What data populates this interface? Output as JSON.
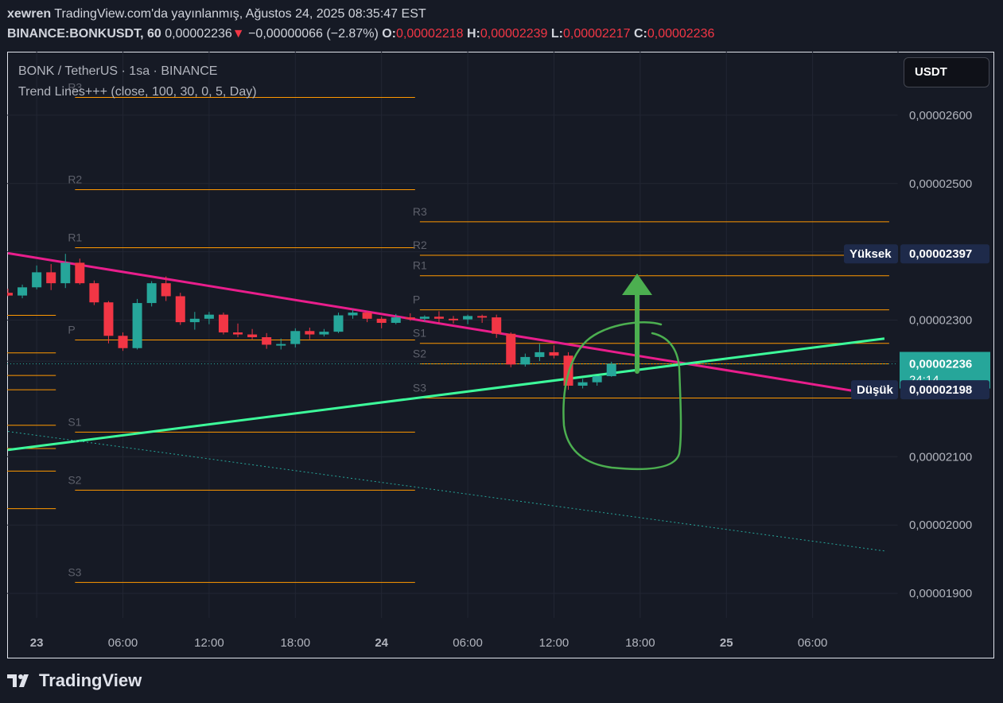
{
  "header": {
    "author": "xewren",
    "published": "TradingView.com'da yayınlanmış, Ağustos 24, 2025 08:35:47 EST",
    "symbol": "BINANCE:BONKUSDT, 60",
    "last": "0,00002236",
    "arrow": "▼",
    "change": "−0,00000066 (−2.87%)",
    "o_label": "O:",
    "o": "0,00002218",
    "h_label": "H:",
    "h": "0,00002239",
    "l_label": "L:",
    "l": "0,00002217",
    "c_label": "C:",
    "c": "0,00002236"
  },
  "legend": {
    "title": "BONK / TetherUS · 1sa · BINANCE",
    "indicator": "Trend Lines+++ (close, 100, 30, 0, 5, Day)"
  },
  "currency_button": "USDT",
  "brand": "TradingView",
  "colors": {
    "background": "#161a25",
    "up": "#26a69a",
    "down": "#f23645",
    "downtrend": "#e91e8c",
    "uptrend": "#3dfc9b",
    "pivot": "#ff9800",
    "annotation": "#4caf50"
  },
  "chart_data": {
    "type": "candlestick",
    "price_axis_ticks": [
      "0,00002600",
      "0,00002500",
      "0,00002300",
      "0,00002100",
      "0,00002000",
      "0,00001900"
    ],
    "price_axis_values": [
      2.6e-05,
      2.5e-05,
      2.3e-05,
      2.1e-05,
      2e-05,
      1.9e-05
    ],
    "time_axis_ticks": [
      "23",
      "06:00",
      "12:00",
      "18:00",
      "24",
      "06:00",
      "12:00",
      "18:00",
      "25",
      "06:00"
    ],
    "time_axis_hours": [
      0,
      6,
      12,
      18,
      24,
      30,
      36,
      42,
      48,
      54
    ],
    "y_range": [
      1.864e-05,
      2.693e-05
    ],
    "x_range_hours": [
      -2,
      60
    ],
    "price_labels": [
      {
        "text": "Yüksek",
        "value": "0,00002397",
        "price": 2.397e-05,
        "style": "tag"
      },
      {
        "text": "24:14",
        "value": "0,00002236",
        "price": 2.236e-05,
        "style": "current"
      },
      {
        "text": "Düşük",
        "value": "0,00002198",
        "price": 2.198e-05,
        "style": "tag"
      }
    ],
    "candles": [
      {
        "t": -2,
        "o": 2.34e-05,
        "h": 2.346e-05,
        "l": 2.335e-05,
        "c": 2.336e-05
      },
      {
        "t": -1,
        "o": 2.336e-05,
        "h": 2.352e-05,
        "l": 2.332e-05,
        "c": 2.348e-05
      },
      {
        "t": 0,
        "o": 2.348e-05,
        "h": 2.38e-05,
        "l": 2.345e-05,
        "c": 2.37e-05
      },
      {
        "t": 1,
        "o": 2.37e-05,
        "h": 2.382e-05,
        "l": 2.344e-05,
        "c": 2.354e-05
      },
      {
        "t": 2,
        "o": 2.354e-05,
        "h": 2.397e-05,
        "l": 2.347e-05,
        "c": 2.384e-05
      },
      {
        "t": 3,
        "o": 2.384e-05,
        "h": 2.39e-05,
        "l": 2.352e-05,
        "c": 2.354e-05
      },
      {
        "t": 4,
        "o": 2.354e-05,
        "h": 2.358e-05,
        "l": 2.322e-05,
        "c": 2.326e-05
      },
      {
        "t": 5,
        "o": 2.326e-05,
        "h": 2.328e-05,
        "l": 2.266e-05,
        "c": 2.277e-05
      },
      {
        "t": 6,
        "o": 2.277e-05,
        "h": 2.282e-05,
        "l": 2.255e-05,
        "c": 2.259e-05
      },
      {
        "t": 7,
        "o": 2.259e-05,
        "h": 2.331e-05,
        "l": 2.257e-05,
        "c": 2.325e-05
      },
      {
        "t": 8,
        "o": 2.325e-05,
        "h": 2.357e-05,
        "l": 2.32e-05,
        "c": 2.354e-05
      },
      {
        "t": 9,
        "o": 2.354e-05,
        "h": 2.364e-05,
        "l": 2.328e-05,
        "c": 2.335e-05
      },
      {
        "t": 10,
        "o": 2.335e-05,
        "h": 2.34e-05,
        "l": 2.293e-05,
        "c": 2.297e-05
      },
      {
        "t": 11,
        "o": 2.297e-05,
        "h": 2.312e-05,
        "l": 2.286e-05,
        "c": 2.302e-05
      },
      {
        "t": 12,
        "o": 2.302e-05,
        "h": 2.312e-05,
        "l": 2.294e-05,
        "c": 2.308e-05
      },
      {
        "t": 13,
        "o": 2.308e-05,
        "h": 2.311e-05,
        "l": 2.279e-05,
        "c": 2.282e-05
      },
      {
        "t": 14,
        "o": 2.282e-05,
        "h": 2.295e-05,
        "l": 2.275e-05,
        "c": 2.279e-05
      },
      {
        "t": 15,
        "o": 2.279e-05,
        "h": 2.287e-05,
        "l": 2.272e-05,
        "c": 2.275e-05
      },
      {
        "t": 16,
        "o": 2.275e-05,
        "h": 2.281e-05,
        "l": 2.258e-05,
        "c": 2.264e-05
      },
      {
        "t": 17,
        "o": 2.264e-05,
        "h": 2.273e-05,
        "l": 2.257e-05,
        "c": 2.265e-05
      },
      {
        "t": 18,
        "o": 2.265e-05,
        "h": 2.288e-05,
        "l": 2.26e-05,
        "c": 2.284e-05
      },
      {
        "t": 19,
        "o": 2.284e-05,
        "h": 2.289e-05,
        "l": 2.272e-05,
        "c": 2.279e-05
      },
      {
        "t": 20,
        "o": 2.279e-05,
        "h": 2.287e-05,
        "l": 2.276e-05,
        "c": 2.283e-05
      },
      {
        "t": 21,
        "o": 2.283e-05,
        "h": 2.311e-05,
        "l": 2.281e-05,
        "c": 2.307e-05
      },
      {
        "t": 22,
        "o": 2.307e-05,
        "h": 2.316e-05,
        "l": 2.302e-05,
        "c": 2.311e-05
      },
      {
        "t": 23,
        "o": 2.311e-05,
        "h": 2.313e-05,
        "l": 2.297e-05,
        "c": 2.302e-05
      },
      {
        "t": 24,
        "o": 2.302e-05,
        "h": 2.305e-05,
        "l": 2.288e-05,
        "c": 2.296e-05
      },
      {
        "t": 25,
        "o": 2.296e-05,
        "h": 2.309e-05,
        "l": 2.294e-05,
        "c": 2.304e-05
      },
      {
        "t": 26,
        "o": 2.304e-05,
        "h": 2.31e-05,
        "l": 2.299e-05,
        "c": 2.302e-05
      },
      {
        "t": 27,
        "o": 2.302e-05,
        "h": 2.307e-05,
        "l": 2.298e-05,
        "c": 2.305e-05
      },
      {
        "t": 28,
        "o": 2.305e-05,
        "h": 2.313e-05,
        "l": 2.296e-05,
        "c": 2.302e-05
      },
      {
        "t": 29,
        "o": 2.302e-05,
        "h": 2.306e-05,
        "l": 2.295e-05,
        "c": 2.301e-05
      },
      {
        "t": 30,
        "o": 2.301e-05,
        "h": 2.308e-05,
        "l": 2.294e-05,
        "c": 2.306e-05
      },
      {
        "t": 31,
        "o": 2.306e-05,
        "h": 2.308e-05,
        "l": 2.296e-05,
        "c": 2.304e-05
      },
      {
        "t": 32,
        "o": 2.304e-05,
        "h": 2.308e-05,
        "l": 2.274e-05,
        "c": 2.28e-05
      },
      {
        "t": 33,
        "o": 2.28e-05,
        "h": 2.282e-05,
        "l": 2.231e-05,
        "c": 2.235e-05
      },
      {
        "t": 34,
        "o": 2.235e-05,
        "h": 2.251e-05,
        "l": 2.232e-05,
        "c": 2.246e-05
      },
      {
        "t": 35,
        "o": 2.246e-05,
        "h": 2.265e-05,
        "l": 2.24e-05,
        "c": 2.253e-05
      },
      {
        "t": 36,
        "o": 2.253e-05,
        "h": 2.263e-05,
        "l": 2.244e-05,
        "c": 2.248e-05
      },
      {
        "t": 37,
        "o": 2.248e-05,
        "h": 2.253e-05,
        "l": 2.198e-05,
        "c": 2.204e-05
      },
      {
        "t": 38,
        "o": 2.204e-05,
        "h": 2.214e-05,
        "l": 2.2e-05,
        "c": 2.209e-05
      },
      {
        "t": 39,
        "o": 2.209e-05,
        "h": 2.218e-05,
        "l": 2.204e-05,
        "c": 2.218e-05
      },
      {
        "t": 40,
        "o": 2.218e-05,
        "h": 2.239e-05,
        "l": 2.217e-05,
        "c": 2.236e-05
      }
    ],
    "pivot_sets": [
      {
        "t_start": -2,
        "t_end": 1,
        "levels": [
          {
            "label": "",
            "price": 2.307e-05
          },
          {
            "label": "",
            "price": 2.252e-05
          },
          {
            "label": "",
            "price": 2.219e-05
          },
          {
            "label": "",
            "price": 2.198e-05
          },
          {
            "label": "",
            "price": 2.146e-05
          },
          {
            "label": "",
            "price": 2.112e-05
          },
          {
            "label": "",
            "price": 2.079e-05
          },
          {
            "label": "",
            "price": 2.024e-05
          }
        ]
      },
      {
        "t_start": 3,
        "t_end": 26,
        "levels": [
          {
            "label": "R3",
            "price": 2.626e-05
          },
          {
            "label": "R2",
            "price": 2.491e-05
          },
          {
            "label": "R1",
            "price": 2.406e-05
          },
          {
            "label": "P",
            "price": 2.271e-05
          },
          {
            "label": "S1",
            "price": 2.136e-05
          },
          {
            "label": "S2",
            "price": 2.051e-05
          },
          {
            "label": "S3",
            "price": 1.916e-05
          }
        ]
      },
      {
        "t_start": 27,
        "t_end": 59,
        "levels": [
          {
            "label": "R3",
            "price": 2.444e-05
          },
          {
            "label": "R2",
            "price": 2.395e-05
          },
          {
            "label": "R1",
            "price": 2.365e-05
          },
          {
            "label": "P",
            "price": 2.315e-05
          },
          {
            "label": "S1",
            "price": 2.266e-05
          },
          {
            "label": "S2",
            "price": 2.236e-05
          },
          {
            "label": "S3",
            "price": 2.186e-05
          }
        ]
      }
    ],
    "trend_lines": [
      {
        "name": "",
        "kind": "downtrend",
        "t1": -2,
        "p1": 2.398e-05,
        "t2": 59,
        "p2": 2.189e-05
      },
      {
        "name": "",
        "kind": "uptrend",
        "t1": -2,
        "p1": 2.11e-05,
        "t2": 59,
        "p2": 2.273e-05
      },
      {
        "name": "",
        "kind": "dotted",
        "t1": -2,
        "p1": 2.137e-05,
        "t2": 59,
        "p2": 1.962e-05
      }
    ]
  }
}
